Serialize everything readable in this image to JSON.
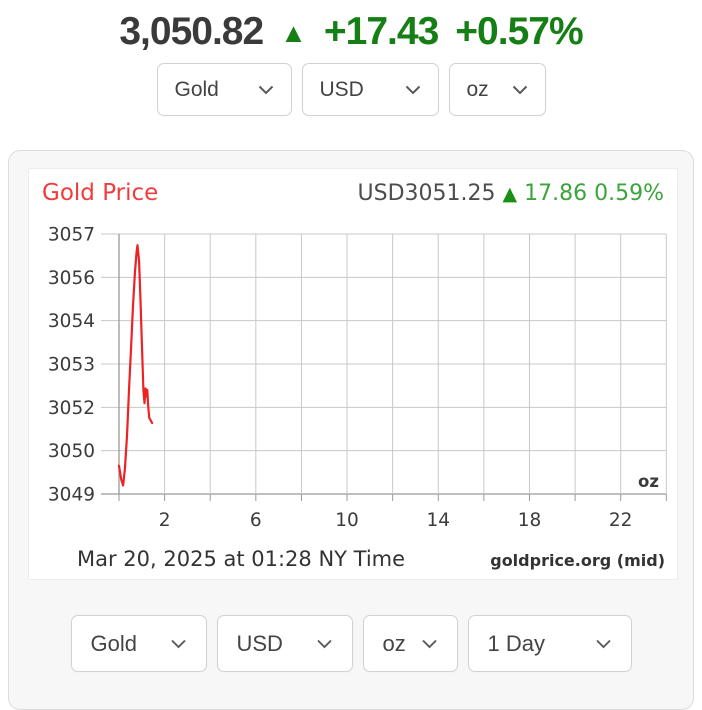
{
  "quote_bar": {
    "price": "3,050.82",
    "arrow": "▲",
    "change": "+17.43",
    "change_pct": "+0.57%"
  },
  "top_controls": {
    "metal": "Gold",
    "currency": "USD",
    "unit": "oz"
  },
  "panel": {
    "chart_header": {
      "title": "Gold Price",
      "quote_prefix": "USD3051.25",
      "arrow": "▲",
      "change": "17.86",
      "change_pct": "0.59%"
    },
    "footer": {
      "timestamp": "Mar 20, 2025 at 01:28 NY Time",
      "source": "goldprice.org (mid)"
    },
    "bottom_controls": {
      "metal": "Gold",
      "currency": "USD",
      "unit": "oz",
      "period": "1 Day"
    }
  },
  "colors": {
    "quote_dark": "#3a3a3a",
    "up_green_bold": "#157f15",
    "chart_green_text": "#3ba43b",
    "chart_green_arrow": "#189018",
    "title_red": "#f03c3c",
    "line_red": "#ee2222",
    "grid": "#c8c8c8",
    "axis": "#999999",
    "tick_label": "#3b3b3b",
    "panel_bg": "#f7f7f7"
  },
  "chart_data": {
    "type": "line",
    "title": "Gold Price",
    "unit_label": "oz",
    "grid": true,
    "x": {
      "range_hours": [
        0,
        24
      ],
      "gridline_step_hours": 2,
      "tick_labels": [
        "2",
        "6",
        "10",
        "14",
        "18",
        "22"
      ],
      "tick_hours": [
        2,
        6,
        10,
        14,
        18,
        22
      ]
    },
    "y": {
      "range": [
        3049.14,
        3057.04
      ],
      "tick_labels": [
        "3057",
        "3056",
        "3054",
        "3053",
        "3052",
        "3050",
        "3049"
      ]
    },
    "series": [
      {
        "name": "Gold price USD per oz",
        "color": "#ee2222",
        "points": [
          [
            0.0,
            3050.0
          ],
          [
            0.09,
            3049.6
          ],
          [
            0.18,
            3049.4
          ],
          [
            0.26,
            3049.9
          ],
          [
            0.35,
            3050.9
          ],
          [
            0.44,
            3052.3
          ],
          [
            0.53,
            3053.6
          ],
          [
            0.61,
            3054.8
          ],
          [
            0.7,
            3055.9
          ],
          [
            0.77,
            3056.5
          ],
          [
            0.81,
            3056.7
          ],
          [
            0.88,
            3056.2
          ],
          [
            0.94,
            3055.1
          ],
          [
            1.01,
            3053.6
          ],
          [
            1.07,
            3052.3
          ],
          [
            1.12,
            3051.9
          ],
          [
            1.16,
            3052.35
          ],
          [
            1.2,
            3052.1
          ],
          [
            1.24,
            3052.3
          ],
          [
            1.28,
            3051.8
          ],
          [
            1.33,
            3051.45
          ],
          [
            1.45,
            3051.3
          ]
        ]
      }
    ]
  }
}
